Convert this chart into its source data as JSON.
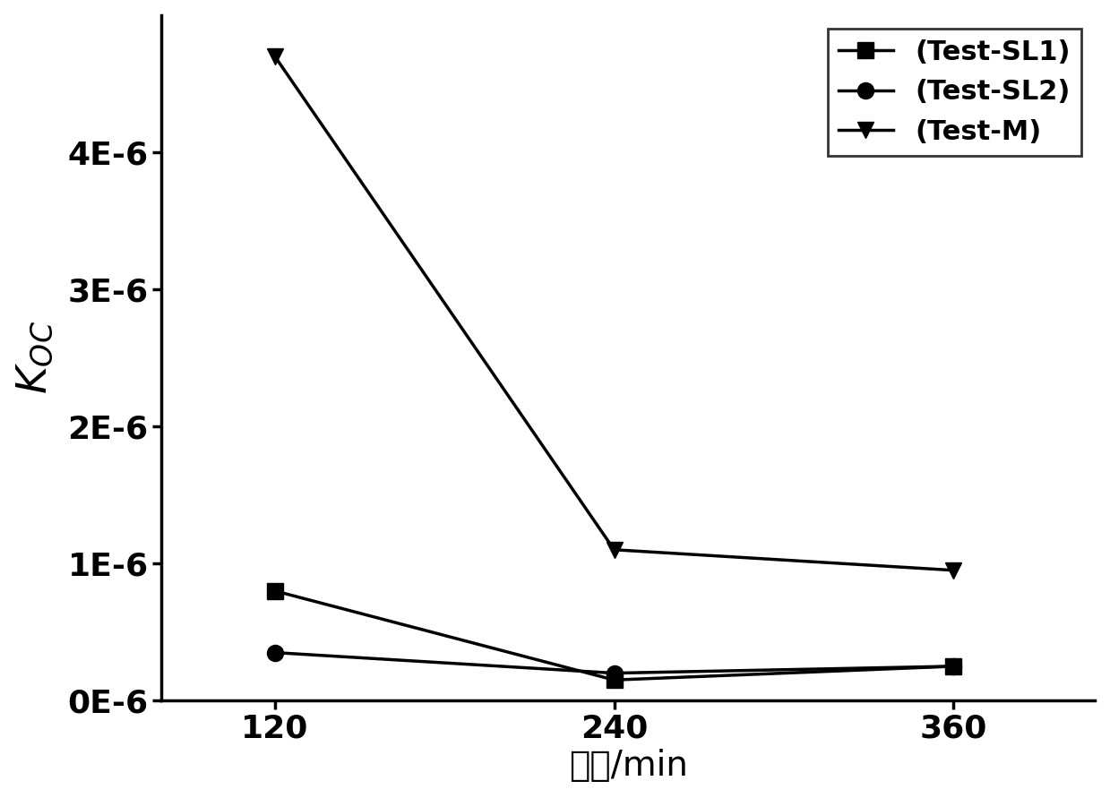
{
  "x": [
    120,
    240,
    360
  ],
  "series": [
    {
      "label": "(Test-SL1)",
      "y": [
        8e-07,
        1.5e-07,
        2.5e-07
      ],
      "marker": "s",
      "markersize": 13,
      "color": "#000000",
      "linewidth": 2.5
    },
    {
      "label": "(Test-SL2)",
      "y": [
        3.5e-07,
        2e-07,
        2.5e-07
      ],
      "marker": "o",
      "markersize": 13,
      "color": "#000000",
      "linewidth": 2.5
    },
    {
      "label": "(Test-M)",
      "y": [
        4.7e-06,
        1.1e-06,
        9.5e-07
      ],
      "marker": "v",
      "markersize": 13,
      "color": "#000000",
      "linewidth": 2.5
    }
  ],
  "xlabel": "时间/min",
  "xlim": [
    80,
    410
  ],
  "ylim": [
    0,
    5e-06
  ],
  "yticks": [
    0,
    1e-06,
    2e-06,
    3e-06,
    4e-06
  ],
  "ytick_labels": [
    "0E-6",
    "1E-6",
    "2E-6",
    "3E-6",
    "4E-6"
  ],
  "xticks": [
    120,
    240,
    360
  ],
  "background_color": "#ffffff",
  "legend_loc": "upper right",
  "label_fontsize": 28,
  "tick_fontsize": 26,
  "legend_fontsize": 22
}
